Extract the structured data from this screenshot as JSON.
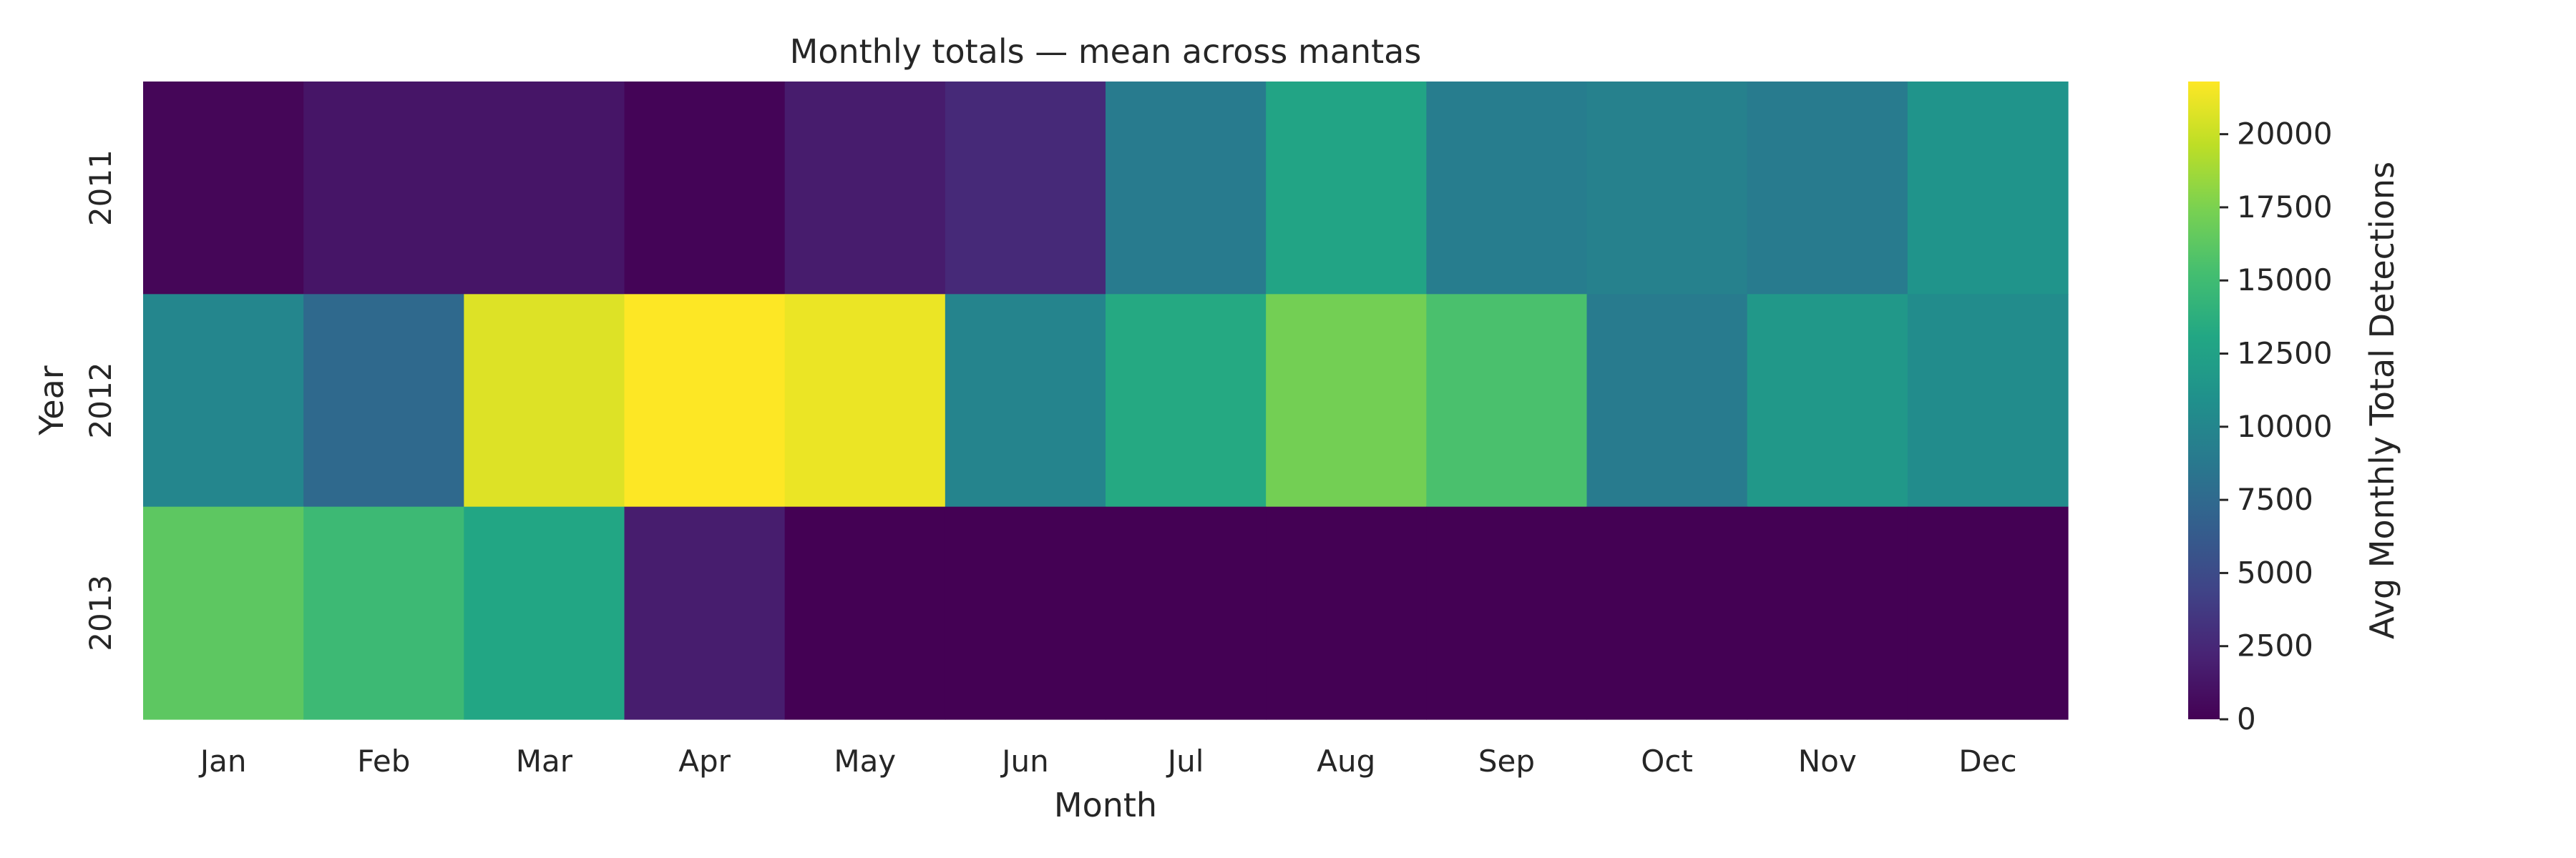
{
  "chart_data": {
    "type": "heatmap",
    "title": "Monthly totals — mean across mantas",
    "xlabel": "Month",
    "ylabel": "Year",
    "x": [
      "Jan",
      "Feb",
      "Mar",
      "Apr",
      "May",
      "Jun",
      "Jul",
      "Aug",
      "Sep",
      "Oct",
      "Nov",
      "Dec"
    ],
    "y": [
      "2011",
      "2012",
      "2013"
    ],
    "values": [
      [
        300,
        1300,
        1300,
        200,
        1700,
        2600,
        9000,
        12800,
        9200,
        9500,
        9000,
        11300
      ],
      [
        10000,
        7500,
        20700,
        21800,
        21200,
        9800,
        13300,
        17200,
        15500,
        9000,
        11700,
        10500
      ],
      [
        16300,
        14800,
        13000,
        1800,
        0,
        0,
        0,
        0,
        0,
        0,
        0,
        0
      ]
    ],
    "colorbar": {
      "label": "Avg Monthly Total Detections",
      "range": [
        0,
        21800
      ],
      "ticks": [
        0,
        2500,
        5000,
        7500,
        10000,
        12500,
        15000,
        17500,
        20000
      ],
      "colormap": "viridis"
    },
    "grid": false
  }
}
